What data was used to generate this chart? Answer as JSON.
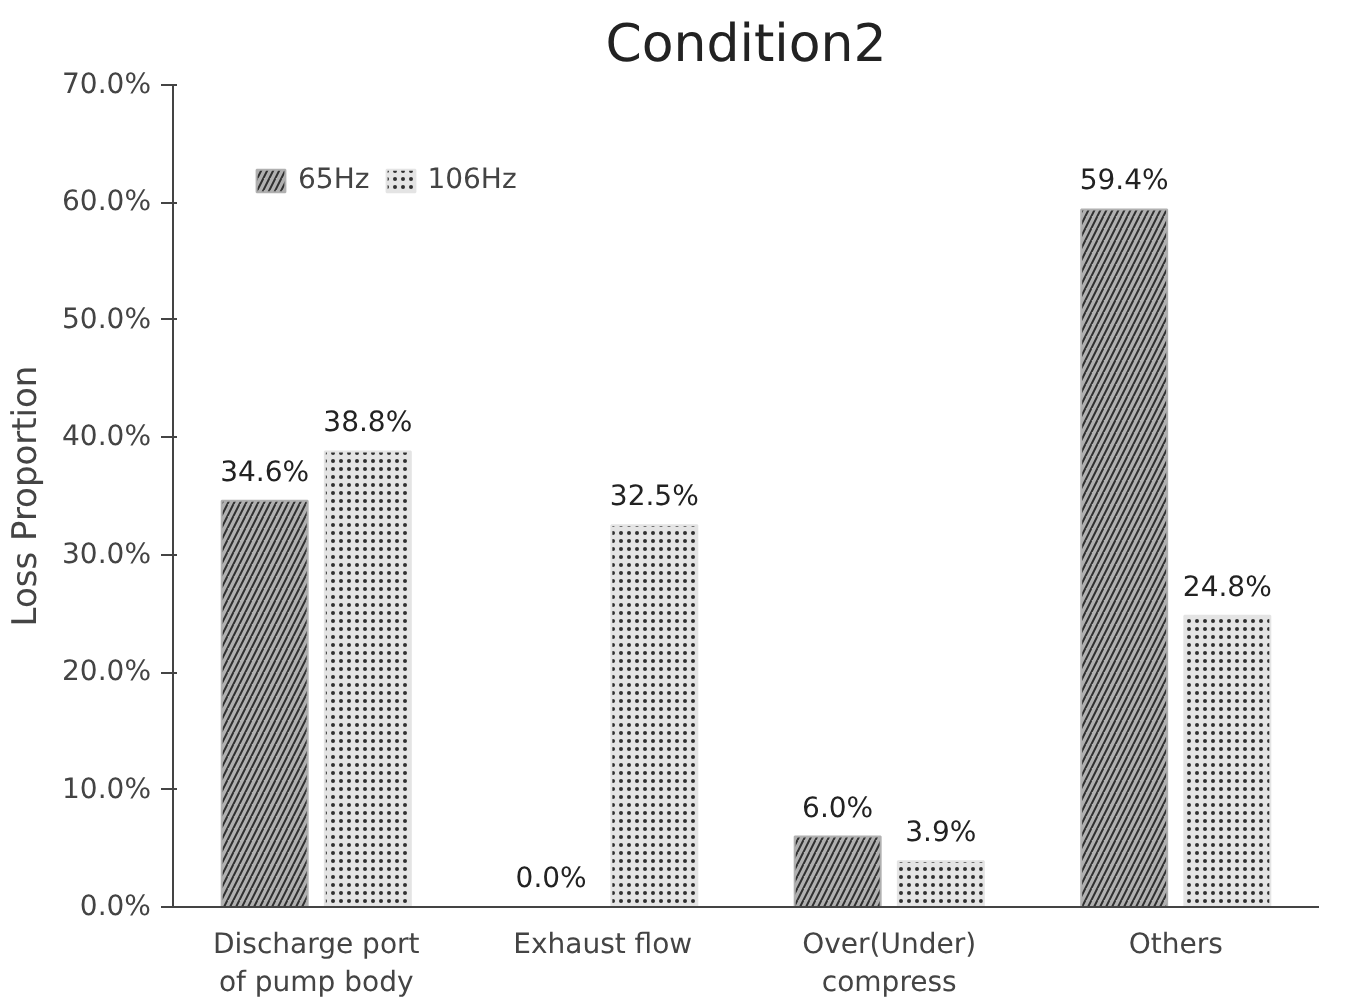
{
  "chart_data": {
    "type": "bar",
    "title": "Condition2",
    "ylabel": "Loss Proportion",
    "categories": [
      "Discharge port of pump body",
      "Exhaust flow",
      "Over(Under) compress",
      "Others"
    ],
    "series": [
      {
        "name": "65Hz",
        "color": "#b0b0b0",
        "values": [
          34.6,
          0.0,
          6.0,
          59.4
        ],
        "value_labels": [
          "34.6%",
          "0.0%",
          "6.0%",
          "59.4%"
        ]
      },
      {
        "name": "106Hz",
        "color": "#e4e4e4",
        "values": [
          38.8,
          32.5,
          3.9,
          24.8
        ],
        "value_labels": [
          "38.8%",
          "32.5%",
          "3.9%",
          "24.8%"
        ]
      }
    ],
    "ylim": [
      0,
      70
    ],
    "yticks": [
      {
        "value": 0,
        "label": "0.0%"
      },
      {
        "value": 10,
        "label": "10.0%"
      },
      {
        "value": 20,
        "label": "20.0%"
      },
      {
        "value": 30,
        "label": "30.0%"
      },
      {
        "value": 40,
        "label": "40.0%"
      },
      {
        "value": 50,
        "label": "50.0%"
      },
      {
        "value": 60,
        "label": "60.0%"
      },
      {
        "value": 70,
        "label": "70.0%"
      }
    ],
    "grid": false,
    "legend": "top left"
  }
}
